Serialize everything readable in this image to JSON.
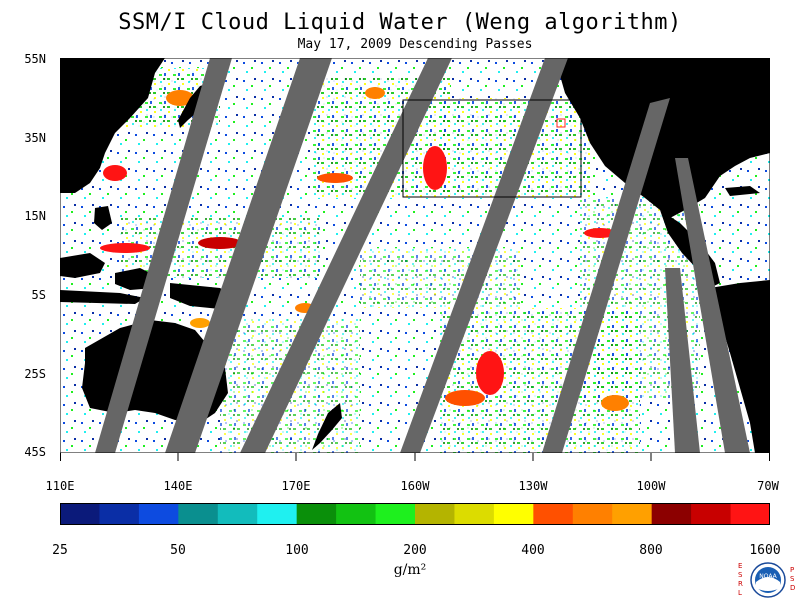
{
  "title": "SSM/I Cloud Liquid Water (Weng algorithm)",
  "subtitle": "May 17, 2009  Descending Passes",
  "map": {
    "lat_labels": [
      "55N",
      "35N",
      "15N",
      "5S",
      "25S",
      "45S"
    ],
    "lon_labels": [
      "110E",
      "140E",
      "170E",
      "160W",
      "130W",
      "100W",
      "70W"
    ],
    "colors": {
      "land": "#000000",
      "missing_swath_gap": "#666666",
      "no_cloud": "#ffffff"
    }
  },
  "colorbar": {
    "tick_labels": [
      "25",
      "50",
      "100",
      "200",
      "400",
      "800",
      "1600"
    ],
    "units": "g/m²",
    "colors": [
      "#0b1a7a",
      "#0a2ea6",
      "#0d4be0",
      "#0a8f8f",
      "#12bcbc",
      "#1ff0f0",
      "#0a8f0a",
      "#12c212",
      "#1ef01e",
      "#b4b400",
      "#dcdc00",
      "#ffff00",
      "#ff5000",
      "#ff8000",
      "#ffa000",
      "#8c0000",
      "#c80000",
      "#ff1414"
    ]
  },
  "logo": {
    "left_letters": [
      "E",
      "S",
      "R",
      "L"
    ],
    "right_letters": [
      "P",
      "S",
      "D"
    ],
    "center_text": "NOAA"
  }
}
